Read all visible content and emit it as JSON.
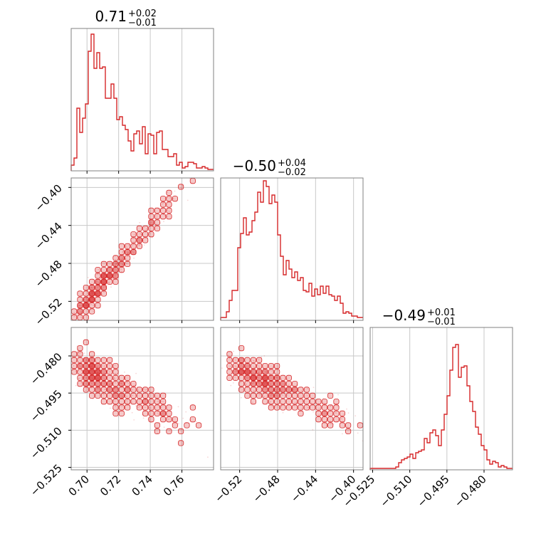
{
  "chart_data": {
    "type": "corner",
    "color": "#d62728",
    "grid": true,
    "parameters": [
      {
        "range": [
          0.69,
          0.78
        ],
        "ticks": [
          0.7,
          0.72,
          0.74,
          0.76
        ],
        "tick_labels": [
          "0.70",
          "0.72",
          "0.74",
          "0.76"
        ],
        "title": {
          "median": "0.71",
          "plus": "+0.02",
          "minus": "−0.01"
        }
      },
      {
        "range": [
          -0.54,
          -0.39
        ],
        "ticks": [
          -0.52,
          -0.48,
          -0.44,
          -0.4
        ],
        "tick_labels": [
          "−0.52",
          "−0.48",
          "−0.44",
          "−0.40"
        ],
        "title": {
          "median": "−0.50",
          "plus": "+0.04",
          "minus": "−0.02"
        }
      },
      {
        "range": [
          -0.526,
          -0.4685
        ],
        "ticks": [
          -0.525,
          -0.51,
          -0.495,
          -0.48
        ],
        "tick_labels": [
          "−0.525",
          "−0.510",
          "−0.495",
          "−0.480"
        ],
        "title": {
          "median": "−0.49",
          "plus": "+0.01",
          "minus": "−0.01"
        }
      }
    ],
    "histograms": [
      [
        0.04,
        0.09,
        0.44,
        0.27,
        0.37,
        0.47,
        0.84,
        0.96,
        0.72,
        0.83,
        0.72,
        0.73,
        0.51,
        0.51,
        0.61,
        0.51,
        0.36,
        0.38,
        0.32,
        0.29,
        0.21,
        0.14,
        0.26,
        0.28,
        0.19,
        0.31,
        0.12,
        0.26,
        0.25,
        0.12,
        0.27,
        0.28,
        0.15,
        0.15,
        0.1,
        0.1,
        0.12,
        0.04,
        0.06,
        0.02,
        0.03,
        0.06,
        0.06,
        0.05,
        0.02,
        0.02,
        0.03,
        0.02,
        0.01,
        0.01
      ],
      [
        0.02,
        0.02,
        0.06,
        0.14,
        0.21,
        0.21,
        0.51,
        0.61,
        0.72,
        0.6,
        0.62,
        0.7,
        0.76,
        0.9,
        0.83,
        0.98,
        0.94,
        0.82,
        0.88,
        0.83,
        0.6,
        0.45,
        0.32,
        0.42,
        0.36,
        0.3,
        0.34,
        0.28,
        0.3,
        0.21,
        0.2,
        0.26,
        0.17,
        0.22,
        0.18,
        0.24,
        0.19,
        0.24,
        0.18,
        0.17,
        0.14,
        0.17,
        0.12,
        0.05,
        0.06,
        0.05,
        0.03,
        0.03,
        0.02,
        0.02
      ],
      [
        0.01,
        0.01,
        0.01,
        0.01,
        0.01,
        0.01,
        0.01,
        0.01,
        0.01,
        0.02,
        0.05,
        0.07,
        0.08,
        0.09,
        0.11,
        0.08,
        0.12,
        0.13,
        0.14,
        0.22,
        0.19,
        0.26,
        0.28,
        0.24,
        0.17,
        0.28,
        0.39,
        0.52,
        0.7,
        0.86,
        0.88,
        0.65,
        0.72,
        0.73,
        0.59,
        0.48,
        0.41,
        0.3,
        0.25,
        0.17,
        0.14,
        0.07,
        0.04,
        0.06,
        0.05,
        0.02,
        0.03,
        0.02,
        0.01,
        0.01
      ]
    ],
    "scatter_pairs": [
      {
        "x_param": 0,
        "y_param": 1,
        "model": {
          "slope": 2.0,
          "intercept": -1.92,
          "noise": 0.006
        }
      },
      {
        "x_param": 0,
        "y_param": 2,
        "model": {
          "slope": -0.35,
          "intercept": -0.241,
          "noise": 0.004
        }
      },
      {
        "x_param": 1,
        "y_param": 2,
        "model": {
          "slope": -0.175,
          "intercept": -0.577,
          "noise": 0.0035
        }
      }
    ]
  }
}
